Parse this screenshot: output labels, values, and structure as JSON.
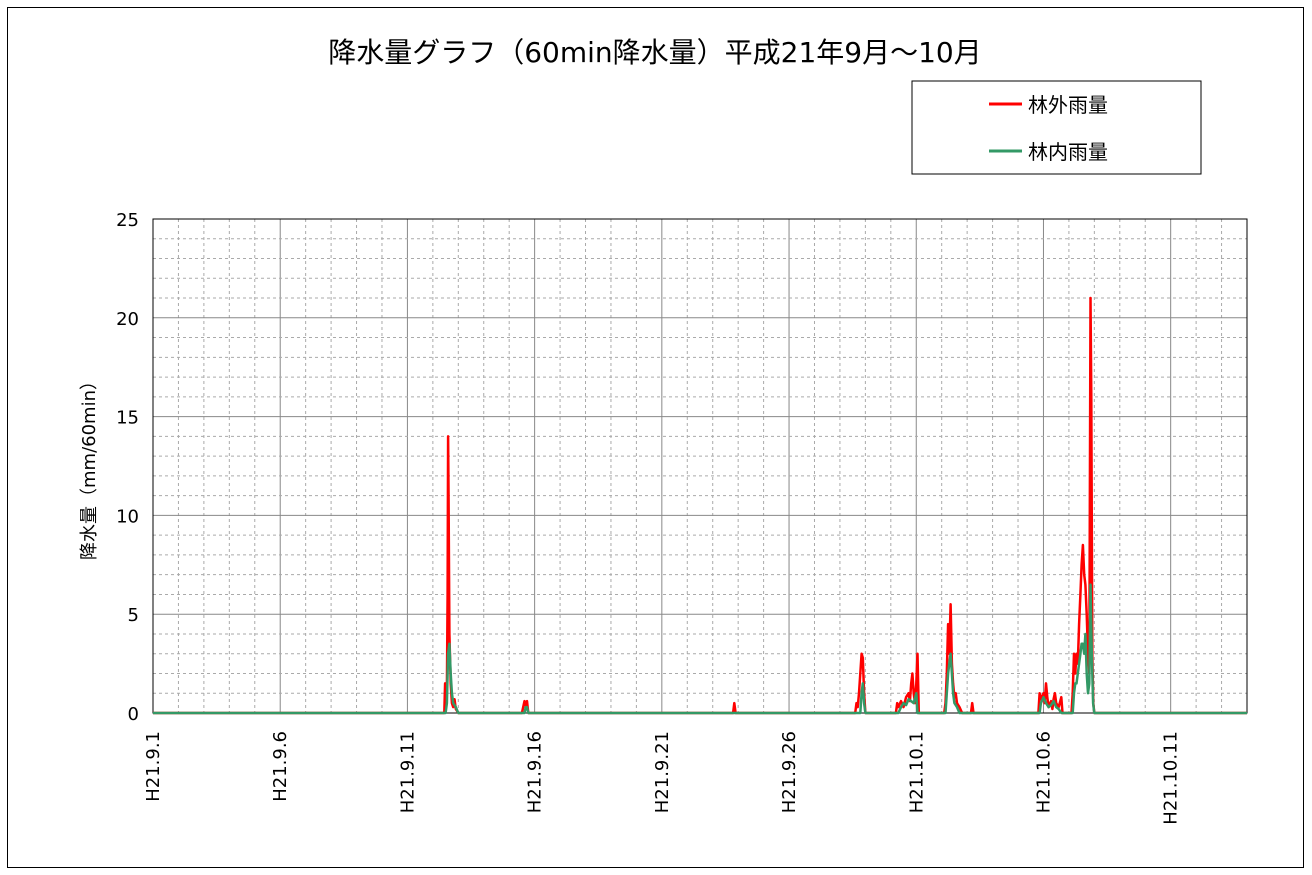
{
  "chart_data": {
    "type": "line",
    "title": "降水量グラフ（60min降水量）平成21年9月～10月",
    "ylabel": "降水量（mm/60min）",
    "xlabel": "",
    "ylim": [
      0,
      25
    ],
    "yticks": [
      0,
      5,
      10,
      15,
      20,
      25
    ],
    "xlim": [
      0,
      43
    ],
    "xticks": [
      {
        "day": 0,
        "label": "H21.9.1"
      },
      {
        "day": 5,
        "label": "H21.9.6"
      },
      {
        "day": 10,
        "label": "H21.9.11"
      },
      {
        "day": 15,
        "label": "H21.9.16"
      },
      {
        "day": 20,
        "label": "H21.9.21"
      },
      {
        "day": 25,
        "label": "H21.9.26"
      },
      {
        "day": 30,
        "label": "H21.10.1"
      },
      {
        "day": 35,
        "label": "H21.10.6"
      },
      {
        "day": 40,
        "label": "H21.10.11"
      }
    ],
    "grid": true,
    "legend_position": "top-right",
    "series": [
      {
        "name": "林外雨量",
        "color": "#ff0000",
        "points": [
          [
            0,
            0
          ],
          [
            11.45,
            0
          ],
          [
            11.48,
            1.5
          ],
          [
            11.52,
            0.5
          ],
          [
            11.55,
            1.2
          ],
          [
            11.58,
            6.0
          ],
          [
            11.6,
            14.0
          ],
          [
            11.62,
            10.7
          ],
          [
            11.65,
            4.0
          ],
          [
            11.7,
            1.5
          ],
          [
            11.75,
            0.5
          ],
          [
            11.8,
            0.3
          ],
          [
            11.85,
            0.7
          ],
          [
            11.9,
            0.2
          ],
          [
            12.0,
            0
          ],
          [
            14.5,
            0
          ],
          [
            14.55,
            0.3
          ],
          [
            14.6,
            0.6
          ],
          [
            14.65,
            0.4
          ],
          [
            14.7,
            0.6
          ],
          [
            14.75,
            0
          ],
          [
            22.8,
            0
          ],
          [
            22.85,
            0.5
          ],
          [
            22.9,
            0
          ],
          [
            27.6,
            0
          ],
          [
            27.65,
            0.5
          ],
          [
            27.7,
            0.3
          ],
          [
            27.75,
            1.0
          ],
          [
            27.8,
            2.0
          ],
          [
            27.85,
            3.0
          ],
          [
            27.9,
            2.8
          ],
          [
            27.95,
            1.0
          ],
          [
            28.0,
            0
          ],
          [
            29.2,
            0
          ],
          [
            29.25,
            0.5
          ],
          [
            29.3,
            0.3
          ],
          [
            29.4,
            0.6
          ],
          [
            29.5,
            0.3
          ],
          [
            29.6,
            0.8
          ],
          [
            29.7,
            1.0
          ],
          [
            29.75,
            0.6
          ],
          [
            29.8,
            1.5
          ],
          [
            29.85,
            2.0
          ],
          [
            29.9,
            1.0
          ],
          [
            29.95,
            0.5
          ],
          [
            30.0,
            1.5
          ],
          [
            30.05,
            3.0
          ],
          [
            30.1,
            0
          ],
          [
            31.1,
            0
          ],
          [
            31.15,
            0.5
          ],
          [
            31.2,
            2.0
          ],
          [
            31.25,
            4.5
          ],
          [
            31.3,
            3.0
          ],
          [
            31.35,
            5.5
          ],
          [
            31.4,
            2.5
          ],
          [
            31.45,
            1.5
          ],
          [
            31.5,
            0.8
          ],
          [
            31.55,
            1.0
          ],
          [
            31.6,
            0.5
          ],
          [
            31.7,
            0.3
          ],
          [
            31.8,
            0
          ],
          [
            32.15,
            0
          ],
          [
            32.2,
            0.5
          ],
          [
            32.25,
            0
          ],
          [
            34.8,
            0
          ],
          [
            34.85,
            1.0
          ],
          [
            34.9,
            0.7
          ],
          [
            35.0,
            1.0
          ],
          [
            35.05,
            0.5
          ],
          [
            35.1,
            1.5
          ],
          [
            35.15,
            0.8
          ],
          [
            35.2,
            0.3
          ],
          [
            35.3,
            0.6
          ],
          [
            35.35,
            0.2
          ],
          [
            35.4,
            0.7
          ],
          [
            35.45,
            1.0
          ],
          [
            35.5,
            0.5
          ],
          [
            35.6,
            0.3
          ],
          [
            35.7,
            0.8
          ],
          [
            35.75,
            0
          ],
          [
            36.1,
            0
          ],
          [
            36.15,
            1.0
          ],
          [
            36.2,
            3.0
          ],
          [
            36.25,
            2.0
          ],
          [
            36.3,
            3.0
          ],
          [
            36.35,
            2.5
          ],
          [
            36.4,
            4.5
          ],
          [
            36.45,
            6.0
          ],
          [
            36.5,
            7.5
          ],
          [
            36.55,
            8.5
          ],
          [
            36.6,
            7.0
          ],
          [
            36.65,
            6.5
          ],
          [
            36.7,
            5.0
          ],
          [
            36.75,
            3.0
          ],
          [
            36.8,
            2.0
          ],
          [
            36.85,
            21.0
          ],
          [
            36.88,
            16.0
          ],
          [
            36.92,
            3.0
          ],
          [
            36.96,
            0.5
          ],
          [
            37.0,
            0
          ],
          [
            43,
            0
          ]
        ]
      },
      {
        "name": "林内雨量",
        "color": "#339966",
        "points": [
          [
            0,
            0
          ],
          [
            11.5,
            0
          ],
          [
            11.55,
            0.5
          ],
          [
            11.6,
            3.0
          ],
          [
            11.65,
            3.5
          ],
          [
            11.7,
            2.0
          ],
          [
            11.75,
            1.0
          ],
          [
            11.8,
            0.5
          ],
          [
            11.9,
            0.3
          ],
          [
            12.0,
            0
          ],
          [
            14.6,
            0
          ],
          [
            14.65,
            0.3
          ],
          [
            14.7,
            0.3
          ],
          [
            14.75,
            0
          ],
          [
            27.8,
            0
          ],
          [
            27.85,
            1.0
          ],
          [
            27.9,
            1.5
          ],
          [
            27.95,
            0.5
          ],
          [
            28.0,
            0
          ],
          [
            29.3,
            0
          ],
          [
            29.4,
            0.3
          ],
          [
            29.5,
            0.5
          ],
          [
            29.6,
            0.4
          ],
          [
            29.7,
            0.7
          ],
          [
            29.8,
            0.6
          ],
          [
            29.9,
            0.5
          ],
          [
            30.0,
            1.0
          ],
          [
            30.05,
            0
          ],
          [
            31.15,
            0
          ],
          [
            31.2,
            1.0
          ],
          [
            31.25,
            2.0
          ],
          [
            31.3,
            2.5
          ],
          [
            31.35,
            3.0
          ],
          [
            31.4,
            2.0
          ],
          [
            31.45,
            1.0
          ],
          [
            31.5,
            0.5
          ],
          [
            31.6,
            0.3
          ],
          [
            31.7,
            0
          ],
          [
            34.85,
            0
          ],
          [
            34.9,
            0.5
          ],
          [
            35.0,
            0.8
          ],
          [
            35.1,
            0.5
          ],
          [
            35.2,
            0.3
          ],
          [
            35.3,
            0.4
          ],
          [
            35.4,
            0.6
          ],
          [
            35.5,
            0.3
          ],
          [
            35.6,
            0.2
          ],
          [
            35.7,
            0
          ],
          [
            36.15,
            0
          ],
          [
            36.2,
            1.0
          ],
          [
            36.25,
            1.5
          ],
          [
            36.3,
            1.5
          ],
          [
            36.35,
            2.0
          ],
          [
            36.4,
            2.5
          ],
          [
            36.45,
            3.0
          ],
          [
            36.5,
            3.5
          ],
          [
            36.55,
            3.5
          ],
          [
            36.6,
            3.0
          ],
          [
            36.65,
            4.0
          ],
          [
            36.7,
            2.0
          ],
          [
            36.75,
            1.0
          ],
          [
            36.8,
            1.5
          ],
          [
            36.85,
            6.5
          ],
          [
            36.9,
            3.0
          ],
          [
            36.95,
            0.5
          ],
          [
            37.0,
            0
          ],
          [
            43,
            0
          ]
        ]
      }
    ]
  }
}
